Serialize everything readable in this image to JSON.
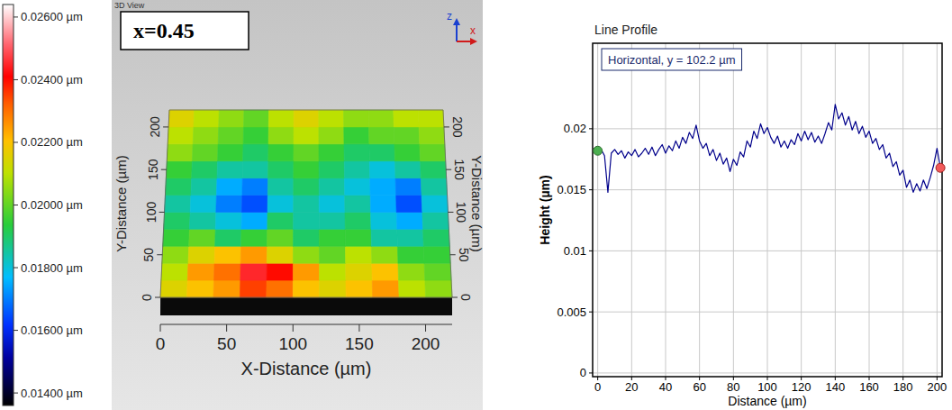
{
  "chart_data": [
    {
      "type": "heatmap",
      "title": "x=0.45",
      "subtitle": "3D View",
      "x_label": "X-Distance (µm)",
      "y_label": "Y-Distance (µm)",
      "annotations": [
        "z",
        "x"
      ],
      "xlim": [
        0,
        220
      ],
      "ylim": [
        0,
        220
      ],
      "xticks": [
        0,
        50,
        100,
        150,
        200
      ],
      "yticks": [
        0,
        50,
        100,
        150,
        200
      ],
      "x": [
        10,
        30,
        50,
        70,
        90,
        110,
        130,
        150,
        170,
        190,
        210
      ],
      "y": [
        10,
        30,
        50,
        70,
        90,
        110,
        130,
        150,
        170,
        190,
        210
      ],
      "cells": [
        [
          0.0215,
          0.022,
          0.0225,
          0.0235,
          0.023,
          0.022,
          0.0215,
          0.022,
          0.0225,
          0.021,
          0.0205
        ],
        [
          0.021,
          0.0225,
          0.023,
          0.0245,
          0.024,
          0.0225,
          0.021,
          0.0215,
          0.022,
          0.0205,
          0.02
        ],
        [
          0.0205,
          0.0215,
          0.022,
          0.0225,
          0.0215,
          0.0205,
          0.02,
          0.021,
          0.0205,
          0.0195,
          0.0195
        ],
        [
          0.0195,
          0.02,
          0.019,
          0.0195,
          0.02,
          0.019,
          0.0195,
          0.0195,
          0.0185,
          0.0185,
          0.019
        ],
        [
          0.019,
          0.0185,
          0.018,
          0.0175,
          0.019,
          0.0185,
          0.0185,
          0.019,
          0.018,
          0.0175,
          0.0185
        ],
        [
          0.0185,
          0.018,
          0.017,
          0.0165,
          0.018,
          0.0185,
          0.018,
          0.0185,
          0.0175,
          0.0165,
          0.018
        ],
        [
          0.019,
          0.0185,
          0.0175,
          0.017,
          0.0185,
          0.019,
          0.0185,
          0.018,
          0.0175,
          0.017,
          0.0185
        ],
        [
          0.0195,
          0.019,
          0.0185,
          0.0185,
          0.019,
          0.0195,
          0.019,
          0.0185,
          0.018,
          0.0185,
          0.019
        ],
        [
          0.0205,
          0.02,
          0.0195,
          0.019,
          0.0195,
          0.02,
          0.0195,
          0.019,
          0.019,
          0.0195,
          0.02
        ],
        [
          0.021,
          0.0205,
          0.02,
          0.0195,
          0.0205,
          0.021,
          0.0205,
          0.0195,
          0.02,
          0.02,
          0.0205
        ],
        [
          0.0215,
          0.021,
          0.0205,
          0.02,
          0.021,
          0.0215,
          0.021,
          0.0205,
          0.0205,
          0.021,
          0.021
        ]
      ],
      "colorbar": {
        "range": [
          0.0136,
          0.0264
        ],
        "ticks": [
          {
            "value": 0.026,
            "label": "0.02600 µm"
          },
          {
            "value": 0.024,
            "label": "0.02400 µm"
          },
          {
            "value": 0.022,
            "label": "0.02200 µm"
          },
          {
            "value": 0.02,
            "label": "0.02000 µm"
          },
          {
            "value": 0.018,
            "label": "0.01800 µm"
          },
          {
            "value": 0.016,
            "label": "0.01600 µm"
          },
          {
            "value": 0.014,
            "label": "0.01400 µm"
          }
        ]
      }
    },
    {
      "type": "line",
      "title": "Line Profile",
      "x_label": "Distance (µm)",
      "y_label": "Height (µm)",
      "xlim": [
        -3,
        203
      ],
      "ylim": [
        -0.0003,
        0.027
      ],
      "xticks": [
        0,
        20,
        40,
        60,
        80,
        100,
        120,
        140,
        160,
        180,
        200
      ],
      "yticks": [
        0,
        0.005,
        0.01,
        0.015,
        0.02
      ],
      "grid": true,
      "legend": "upper left",
      "x": [
        0,
        2,
        4,
        6,
        8,
        10,
        12,
        14,
        16,
        18,
        20,
        22,
        24,
        26,
        28,
        30,
        32,
        34,
        36,
        38,
        40,
        42,
        44,
        46,
        48,
        50,
        52,
        54,
        56,
        58,
        60,
        62,
        64,
        66,
        68,
        70,
        72,
        74,
        76,
        78,
        80,
        82,
        84,
        86,
        88,
        90,
        92,
        94,
        96,
        98,
        100,
        102,
        104,
        106,
        108,
        110,
        112,
        114,
        116,
        118,
        120,
        122,
        124,
        126,
        128,
        130,
        132,
        134,
        136,
        138,
        140,
        142,
        144,
        146,
        148,
        150,
        152,
        154,
        156,
        158,
        160,
        162,
        164,
        166,
        168,
        170,
        172,
        174,
        176,
        178,
        180,
        182,
        184,
        186,
        188,
        190,
        192,
        194,
        196,
        198,
        200,
        202
      ],
      "series": [
        {
          "name": "Horizontal, y = 102.2 µm",
          "color": "#00008b",
          "values": [
            0.0182,
            0.0183,
            0.0178,
            0.0148,
            0.018,
            0.0183,
            0.0179,
            0.0182,
            0.0176,
            0.0181,
            0.0178,
            0.0183,
            0.0177,
            0.018,
            0.0184,
            0.0179,
            0.0185,
            0.0178,
            0.0183,
            0.0187,
            0.018,
            0.0186,
            0.0182,
            0.019,
            0.0184,
            0.0193,
            0.0188,
            0.0197,
            0.0192,
            0.0203,
            0.019,
            0.0184,
            0.0188,
            0.0178,
            0.0183,
            0.0174,
            0.018,
            0.0171,
            0.0176,
            0.0165,
            0.0175,
            0.017,
            0.0181,
            0.0177,
            0.019,
            0.0185,
            0.0198,
            0.0192,
            0.0204,
            0.0196,
            0.0201,
            0.0193,
            0.0188,
            0.0194,
            0.0185,
            0.019,
            0.0184,
            0.0191,
            0.0187,
            0.0196,
            0.019,
            0.0198,
            0.0191,
            0.0197,
            0.0189,
            0.0194,
            0.0188,
            0.0196,
            0.0205,
            0.0199,
            0.022,
            0.0208,
            0.0213,
            0.0203,
            0.021,
            0.0199,
            0.0206,
            0.0196,
            0.0202,
            0.0193,
            0.0198,
            0.0188,
            0.0192,
            0.0183,
            0.0187,
            0.0176,
            0.018,
            0.0169,
            0.0173,
            0.0162,
            0.0166,
            0.0152,
            0.0158,
            0.0148,
            0.0155,
            0.0149,
            0.0158,
            0.0151,
            0.016,
            0.017,
            0.0184,
            0.0168
          ]
        }
      ]
    }
  ]
}
